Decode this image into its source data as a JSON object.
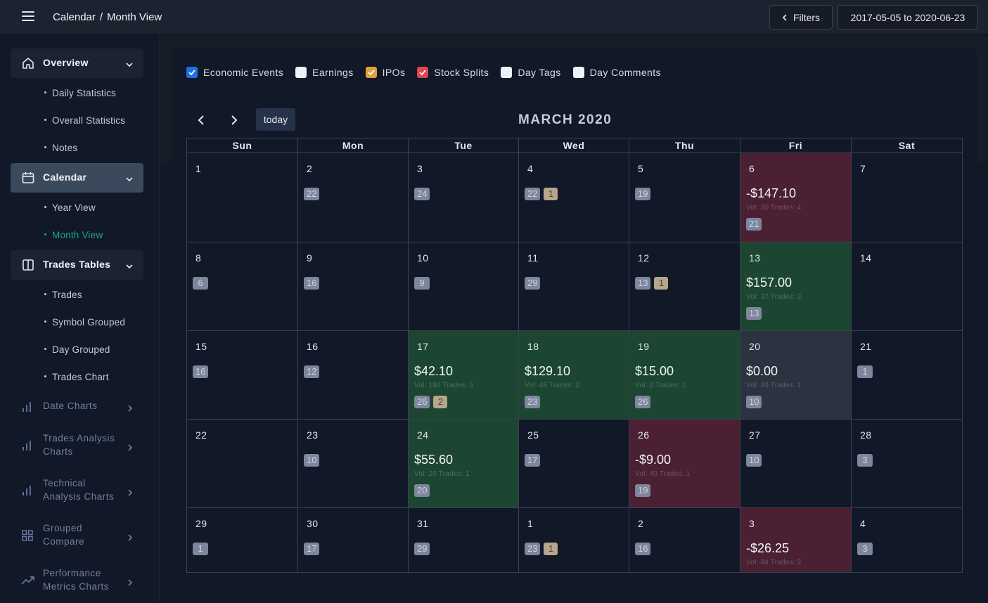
{
  "header": {
    "crumb1": "Calendar",
    "sep": "/",
    "crumb2": "Month View",
    "filters_label": "Filters",
    "date_range": "2017-05-05 to 2020-06-23"
  },
  "sidebar": {
    "groups": [
      {
        "label": "Overview",
        "icon": "home-icon"
      },
      {
        "label": "Calendar",
        "icon": "calendar-icon"
      },
      {
        "label": "Trades Tables",
        "icon": "columns-icon"
      }
    ],
    "overview_items": [
      "Daily Statistics",
      "Overall Statistics",
      "Notes"
    ],
    "calendar_items": [
      "Year View",
      "Month View"
    ],
    "trades_items": [
      "Trades",
      "Symbol Grouped",
      "Day Grouped",
      "Trades Chart"
    ],
    "items": [
      {
        "label": "Date Charts",
        "icon": "bar-chart-icon"
      },
      {
        "label": "Trades Analysis\nCharts",
        "icon": "bar-chart-icon"
      },
      {
        "label": "Technical\nAnalysis Charts",
        "icon": "bar-chart-icon"
      },
      {
        "label": "Grouped\nCompare",
        "icon": "grid-icon"
      },
      {
        "label": "Performance\nMetrics Charts",
        "icon": "trending-up-icon"
      }
    ]
  },
  "filters": [
    {
      "label": "Economic Events",
      "checked": true,
      "color": "#1f6fe5"
    },
    {
      "label": "Earnings",
      "checked": false,
      "color": "#eef1f5"
    },
    {
      "label": "IPOs",
      "checked": true,
      "color": "#e1a03a"
    },
    {
      "label": "Stock Splits",
      "checked": true,
      "color": "#e0454f"
    },
    {
      "label": "Day Tags",
      "checked": false,
      "color": "#eef1f5"
    },
    {
      "label": "Day Comments",
      "checked": false,
      "color": "#eef1f5"
    }
  ],
  "calendar": {
    "today_label": "today",
    "title": "MARCH 2020",
    "weekdays": [
      "Sun",
      "Mon",
      "Tue",
      "Wed",
      "Thu",
      "Fri",
      "Sat"
    ],
    "weeks": [
      [
        {
          "d": "1"
        },
        {
          "d": "2",
          "badges": [
            "22"
          ]
        },
        {
          "d": "3",
          "badges": [
            "24"
          ]
        },
        {
          "d": "4",
          "badges": [
            "22"
          ],
          "ipo": [
            "1"
          ]
        },
        {
          "d": "5",
          "badges": [
            "19"
          ]
        },
        {
          "d": "6",
          "state": "red",
          "pnl": "-$147.10",
          "meta": "Vol: 20 Trades: 4",
          "badges": [
            "21"
          ]
        },
        {
          "d": "7"
        }
      ],
      [
        {
          "d": "8",
          "badges": [
            "6"
          ]
        },
        {
          "d": "9",
          "badges": [
            "16"
          ]
        },
        {
          "d": "10",
          "badges": [
            "9"
          ]
        },
        {
          "d": "11",
          "badges": [
            "29"
          ]
        },
        {
          "d": "12",
          "badges": [
            "13"
          ],
          "ipo": [
            "1"
          ]
        },
        {
          "d": "13",
          "state": "green",
          "pnl": "$157.00",
          "meta": "Vol: 37 Trades: 3",
          "badges": [
            "13"
          ]
        },
        {
          "d": "14"
        }
      ],
      [
        {
          "d": "15",
          "badges": [
            "16"
          ]
        },
        {
          "d": "16",
          "badges": [
            "12"
          ]
        },
        {
          "d": "17",
          "state": "green",
          "pnl": "$42.10",
          "meta": "Vol: 180 Trades: 5",
          "badges": [
            "26"
          ],
          "ipo": [
            "2"
          ]
        },
        {
          "d": "18",
          "state": "green",
          "pnl": "$129.10",
          "meta": "Vol: 48 Trades: 2",
          "badges": [
            "23"
          ]
        },
        {
          "d": "19",
          "state": "green",
          "pnl": "$15.00",
          "meta": "Vol: 2 Trades: 1",
          "badges": [
            "26"
          ]
        },
        {
          "d": "20",
          "state": "gray",
          "pnl": "$0.00",
          "meta": "Vol: 20 Trades: 1",
          "badges": [
            "10"
          ]
        },
        {
          "d": "21",
          "badges": [
            "1"
          ]
        }
      ],
      [
        {
          "d": "22"
        },
        {
          "d": "23",
          "badges": [
            "10"
          ]
        },
        {
          "d": "24",
          "state": "green",
          "pnl": "$55.60",
          "meta": "Vol: 20 Trades: 1",
          "badges": [
            "20"
          ]
        },
        {
          "d": "25",
          "badges": [
            "17"
          ]
        },
        {
          "d": "26",
          "state": "red",
          "pnl": "-$9.00",
          "meta": "Vol: 40 Trades: 1",
          "badges": [
            "19"
          ]
        },
        {
          "d": "27",
          "badges": [
            "10"
          ]
        },
        {
          "d": "28",
          "badges": [
            "3"
          ]
        }
      ],
      [
        {
          "d": "29",
          "badges": [
            "1"
          ]
        },
        {
          "d": "30",
          "badges": [
            "17"
          ]
        },
        {
          "d": "31",
          "badges": [
            "29"
          ]
        },
        {
          "d": "1",
          "badges": [
            "23"
          ],
          "ipo": [
            "1"
          ]
        },
        {
          "d": "2",
          "badges": [
            "16"
          ]
        },
        {
          "d": "3",
          "state": "red",
          "pnl": "-$26.25",
          "meta": "Vol: 94 Trades: 2"
        },
        {
          "d": "4",
          "badges": [
            "3"
          ]
        }
      ]
    ]
  }
}
